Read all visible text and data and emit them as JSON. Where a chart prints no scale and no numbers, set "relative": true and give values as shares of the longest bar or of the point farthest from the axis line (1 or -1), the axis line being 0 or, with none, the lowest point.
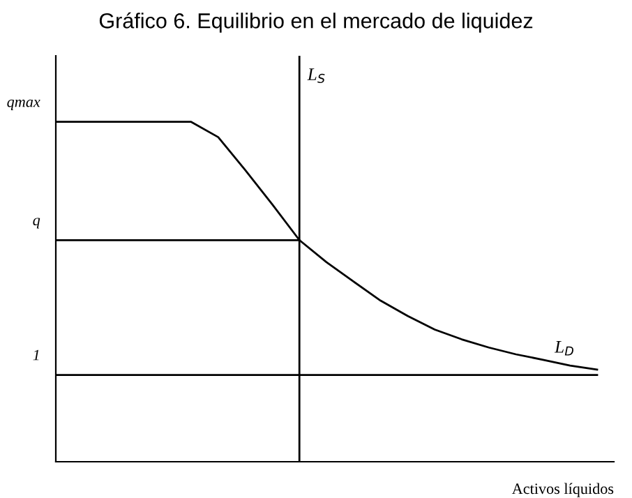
{
  "chart_data": {
    "type": "line",
    "title": "Gráfico 6. Equilibrio en el mercado de liquidez",
    "xlabel": "Activos líquidos",
    "relative": true,
    "categories": [
      null,
      null,
      null,
      null,
      null,
      null,
      null,
      null,
      null,
      null,
      null,
      null,
      null,
      null,
      null,
      null,
      null,
      null,
      null,
      null,
      null
    ],
    "series": [
      {
        "name": "L$_{D}$",
        "color": "#000000",
        "values": [
          1,
          1,
          1,
          1,
          1,
          1,
          0.955,
          0.858,
          0.757,
          0.652,
          0.587,
          0.53,
          0.474,
          0.429,
          0.389,
          0.36,
          0.336,
          0.316,
          0.3,
          0.283,
          0.271
        ]
      },
      {
        "color": "#000000",
        "values": [
          0.652,
          0.652,
          0.652,
          0.652,
          0.652,
          0.652,
          0.652,
          0.652,
          0.652,
          0.652,
          null,
          null,
          null,
          null,
          null,
          null,
          null,
          null,
          null,
          null,
          null
        ]
      },
      {
        "color": "#000000",
        "values": [
          0.255,
          0.255,
          0.255,
          0.255,
          0.255,
          0.255,
          0.255,
          0.255,
          0.255,
          0.255,
          0.255,
          0.255,
          0.255,
          0.255,
          0.255,
          0.255,
          0.255,
          0.255,
          0.255,
          0.255,
          0.255
        ]
      }
    ],
    "annotations": [
      "qmax",
      "q",
      "1",
      "L$_{S}$"
    ]
  }
}
